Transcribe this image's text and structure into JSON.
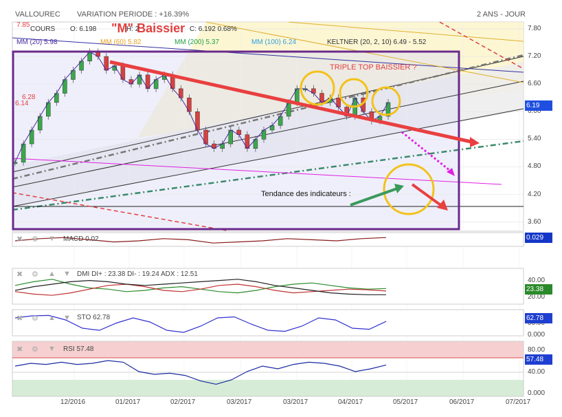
{
  "header": {
    "symbol": "VALLOUREC",
    "variation": "VARIATION PERIODE : +16.39%",
    "period": "2 ANS - JOUR"
  },
  "price_legend": {
    "top_value": "7.85",
    "cours": "COURS",
    "open": "O: 6.198",
    "m_baissier": "\"M\" Baissier",
    "close": "C: 6.192 0.68%",
    "hl_frag": "H: 2",
    "mm20": "MM (20) 5.98",
    "mm60": "MM (60) 5.82",
    "mm200": "MM (200) 5.37",
    "mm100": "MM (100) 6.24",
    "keltner": "KELTNER (20, 2, 10) 6.49 - 5.52"
  },
  "annotations": {
    "triple_top": "TRIPLE TOP BAISSIER ?",
    "tendance": "Tendance des indicateurs :",
    "level1": "6.28",
    "level2": "6.14"
  },
  "colors": {
    "price_badge": "#1f4fe0",
    "macd_badge": "#1537c8",
    "dmi_badge": "#2a8a2a",
    "sto_badge": "#1f3fd0",
    "rsi_badge": "#1f3fd0",
    "red_trend": "#e84040",
    "purple_box": "#6a2a8a",
    "yellow_circle": "#f3c21a",
    "green_arrow": "#3a9a5a"
  },
  "panels": {
    "macd": {
      "title": "MACD 0.02",
      "badge": "0.029"
    },
    "dmi": {
      "title": "DMI DI+ : 23.38 DI- : 19.24 ADX : 12.51",
      "badge": "23.38",
      "ticks": [
        "40.00",
        "20.00"
      ]
    },
    "sto": {
      "title": "STO 62.78",
      "badge": "62.78",
      "ticks": [
        "50.00",
        "0.000"
      ]
    },
    "rsi": {
      "title": "RSI 57.48",
      "badge": "57.48",
      "ticks": [
        "80.00",
        "40.00",
        "0.000"
      ]
    }
  },
  "chart_data": [
    {
      "type": "line",
      "title": "VALLOUREC",
      "y_ticks": [
        3.6,
        4.2,
        4.8,
        5.4,
        6.0,
        6.6,
        7.2,
        7.8
      ],
      "ylim": [
        3.4,
        7.95
      ],
      "x_ticks": [
        "12/2016",
        "01/2017",
        "02/2017",
        "03/2017",
        "03/2017",
        "04/2017",
        "05/2017",
        "06/2017",
        "07/2017"
      ],
      "last_price": "6.19",
      "series": [
        {
          "name": "COURS",
          "values": [
            4.9,
            5.3,
            5.6,
            5.9,
            6.2,
            6.4,
            6.7,
            6.9,
            7.1,
            7.3,
            7.2,
            6.9,
            7.0,
            6.7,
            6.6,
            6.8,
            6.5,
            6.7,
            6.8,
            6.5,
            6.3,
            6.0,
            5.6,
            5.3,
            5.2,
            5.3,
            5.6,
            5.5,
            5.2,
            5.4,
            5.6,
            5.7,
            5.9,
            6.2,
            6.5,
            6.5,
            6.4,
            6.2,
            6.3,
            6.1,
            5.9,
            6.3,
            6.0,
            5.8,
            5.9,
            6.2
          ]
        }
      ]
    },
    {
      "type": "line",
      "title": "MACD",
      "series": [
        {
          "name": "MACD",
          "values": [
            0.0,
            0.02,
            0.03,
            0.01,
            -0.01,
            0.0,
            0.02,
            0.01,
            -0.02,
            -0.01,
            0.0,
            0.02,
            0.01,
            0.0,
            0.02,
            0.03
          ]
        }
      ]
    },
    {
      "type": "line",
      "title": "DMI",
      "ylim": [
        0,
        50
      ],
      "series": [
        {
          "name": "DI+",
          "values": [
            28,
            34,
            38,
            30,
            24,
            22,
            18,
            20,
            24,
            26,
            22,
            18,
            16,
            20,
            26,
            30,
            32,
            28,
            24,
            22,
            23
          ]
        },
        {
          "name": "DI-",
          "values": [
            18,
            14,
            12,
            16,
            22,
            28,
            30,
            26,
            20,
            18,
            22,
            28,
            30,
            26,
            20,
            16,
            18,
            20,
            22,
            21,
            19
          ]
        },
        {
          "name": "ADX",
          "values": [
            20,
            26,
            30,
            34,
            36,
            34,
            30,
            28,
            30,
            32,
            34,
            36,
            38,
            34,
            28,
            24,
            20,
            16,
            14,
            13,
            13
          ]
        }
      ]
    },
    {
      "type": "line",
      "title": "STO",
      "ylim": [
        0,
        100
      ],
      "series": [
        {
          "name": "STO",
          "values": [
            80,
            90,
            92,
            70,
            30,
            20,
            55,
            80,
            60,
            20,
            10,
            40,
            80,
            85,
            50,
            20,
            15,
            40,
            80,
            70,
            30,
            25,
            63
          ]
        }
      ]
    },
    {
      "type": "line",
      "title": "RSI",
      "ylim": [
        0,
        100
      ],
      "series": [
        {
          "name": "RSI",
          "values": [
            55,
            60,
            58,
            62,
            58,
            60,
            65,
            62,
            45,
            40,
            42,
            38,
            28,
            22,
            30,
            45,
            55,
            50,
            58,
            62,
            60,
            55,
            45,
            50,
            57
          ]
        }
      ]
    }
  ]
}
